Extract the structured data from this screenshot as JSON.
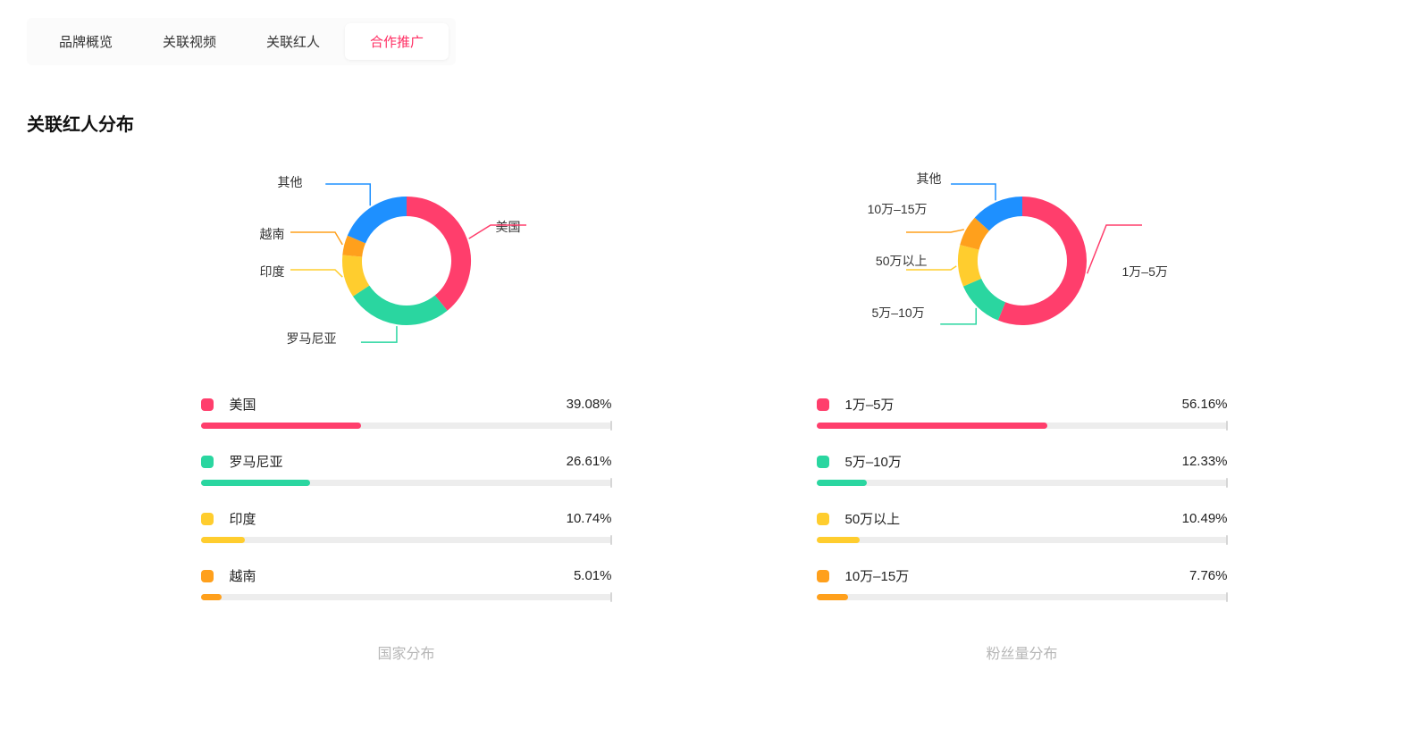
{
  "tabs": [
    {
      "label": "品牌概览",
      "active": false
    },
    {
      "label": "关联视频",
      "active": false
    },
    {
      "label": "关联红人",
      "active": false
    },
    {
      "label": "合作推广",
      "active": true
    }
  ],
  "section_title": "关联红人分布",
  "colors": {
    "pink": "#ff3e6c",
    "teal": "#2ad6a0",
    "amber": "#ffcd2e",
    "orange": "#ffa01c",
    "blue": "#1e90ff",
    "track": "#ededed",
    "tick": "#d6d6d6",
    "caption": "#b7b7b7",
    "tab_active_text": "#ff2e63",
    "background": "#ffffff"
  },
  "chart_style": {
    "type": "donut",
    "outer_radius": 72,
    "inner_radius": 50,
    "stroke_width": 22,
    "label_fontsize": 14,
    "caption_fontsize": 16
  },
  "bar_style": {
    "track_height": 7,
    "swatch_size": 14,
    "swatch_radius": 4,
    "label_fontsize": 15
  },
  "country_chart": {
    "caption": "国家分布",
    "slices": [
      {
        "label": "美国",
        "value": 39.08,
        "color": "#ff3e6c"
      },
      {
        "label": "罗马尼亚",
        "value": 26.61,
        "color": "#2ad6a0"
      },
      {
        "label": "印度",
        "value": 10.74,
        "color": "#ffcd2e"
      },
      {
        "label": "越南",
        "value": 5.01,
        "color": "#ffa01c"
      },
      {
        "label": "其他",
        "value": 18.56,
        "color": "#1e90ff"
      }
    ],
    "bars": [
      {
        "label": "美国",
        "value": 39.08,
        "color": "#ff3e6c",
        "pct_text": "39.08%"
      },
      {
        "label": "罗马尼亚",
        "value": 26.61,
        "color": "#2ad6a0",
        "pct_text": "26.61%"
      },
      {
        "label": "印度",
        "value": 10.74,
        "color": "#ffcd2e",
        "pct_text": "10.74%"
      },
      {
        "label": "越南",
        "value": 5.01,
        "color": "#ffa01c",
        "pct_text": "5.01%"
      }
    ],
    "leader_labels": {
      "right": {
        "text": "美国"
      },
      "bottom": {
        "text": "罗马尼亚"
      },
      "left1": {
        "text": "印度"
      },
      "left2": {
        "text": "越南"
      },
      "top": {
        "text": "其他"
      }
    }
  },
  "follower_chart": {
    "caption": "粉丝量分布",
    "slices": [
      {
        "label": "1万–5万",
        "value": 56.16,
        "color": "#ff3e6c"
      },
      {
        "label": "5万–10万",
        "value": 12.33,
        "color": "#2ad6a0"
      },
      {
        "label": "50万以上",
        "value": 10.49,
        "color": "#ffcd2e"
      },
      {
        "label": "10万–15万",
        "value": 7.76,
        "color": "#ffa01c"
      },
      {
        "label": "其他",
        "value": 13.26,
        "color": "#1e90ff"
      }
    ],
    "bars": [
      {
        "label": "1万–5万",
        "value": 56.16,
        "color": "#ff3e6c",
        "pct_text": "56.16%"
      },
      {
        "label": "5万–10万",
        "value": 12.33,
        "color": "#2ad6a0",
        "pct_text": "12.33%"
      },
      {
        "label": "50万以上",
        "value": 10.49,
        "color": "#ffcd2e",
        "pct_text": "10.49%"
      },
      {
        "label": "10万–15万",
        "value": 7.76,
        "color": "#ffa01c",
        "pct_text": "7.76%"
      }
    ],
    "leader_labels": {
      "right": {
        "text": "1万–5万"
      },
      "bottom": {
        "text": "5万–10万"
      },
      "left1": {
        "text": "50万以上"
      },
      "left2": {
        "text": "10万–15万"
      },
      "top": {
        "text": "其他"
      }
    }
  }
}
